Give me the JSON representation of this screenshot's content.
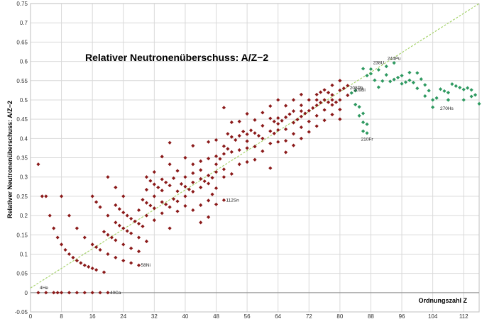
{
  "chart_data": {
    "type": "scatter",
    "title": "Relativer Neutronenüberschuss: A/Z−2",
    "xlabel": "Ordnungszahl   Z",
    "ylabel": "Relativer Neutronenüberschuss:  A/Z−2",
    "xlim": [
      0,
      116
    ],
    "ylim": [
      -0.05,
      0.75
    ],
    "xticks": [
      0,
      8,
      16,
      24,
      32,
      40,
      48,
      56,
      64,
      72,
      80,
      88,
      96,
      104,
      112
    ],
    "yticks": [
      -0.05,
      0,
      0.05,
      0.1,
      0.15,
      0.2,
      0.25,
      0.3,
      0.35,
      0.4,
      0.45,
      0.5,
      0.55,
      0.6,
      0.65,
      0.7,
      0.75
    ],
    "ytick_labels": [
      "-0.05",
      "0",
      "0.05",
      "0.1",
      "0.15",
      "0.2",
      "0.25",
      "0.3",
      "0.35",
      "0.4",
      "0.45",
      "0.5",
      "0.55",
      "0.6",
      "0.65",
      "0.7",
      "0.75"
    ],
    "grid": true,
    "colors": {
      "stable": "#8b1a1a",
      "radioactive": "#2e9960",
      "trend": "#a8d46f",
      "grid": "#d9d9d9"
    },
    "trendline": {
      "x": [
        0,
        116
      ],
      "y": [
        0.012,
        0.75
      ],
      "style": "dashed"
    },
    "series": [
      {
        "color": "#8b1a1a",
        "points": [
          [
            2,
            0
          ],
          [
            2,
            0.333
          ],
          [
            3,
            0.25
          ],
          [
            4,
            0
          ],
          [
            4,
            0.25
          ],
          [
            5,
            0.2
          ],
          [
            6,
            0
          ],
          [
            6,
            0.167
          ],
          [
            7,
            0
          ],
          [
            7,
            0.143
          ],
          [
            8,
            0
          ],
          [
            8,
            0.125
          ],
          [
            8,
            0.25
          ],
          [
            9,
            0.111
          ],
          [
            10,
            0
          ],
          [
            10,
            0.1
          ],
          [
            10,
            0.2
          ],
          [
            11,
            0.091
          ],
          [
            12,
            0
          ],
          [
            12,
            0.083
          ],
          [
            12,
            0.167
          ],
          [
            13,
            0.077
          ],
          [
            14,
            0
          ],
          [
            14,
            0.071
          ],
          [
            14,
            0.143
          ],
          [
            15,
            0.067
          ],
          [
            16,
            0
          ],
          [
            16,
            0.063
          ],
          [
            16,
            0.125
          ],
          [
            16,
            0.25
          ],
          [
            17,
            0.059
          ],
          [
            17,
            0.118
          ],
          [
            17,
            0.235
          ],
          [
            18,
            0
          ],
          [
            18,
            0.111
          ],
          [
            18,
            0.222
          ],
          [
            19,
            0.053
          ],
          [
            19,
            0.158
          ],
          [
            20,
            0
          ],
          [
            20,
            0.1
          ],
          [
            20,
            0.15
          ],
          [
            20,
            0.2
          ],
          [
            20,
            0.3
          ],
          [
            21,
            0.143
          ],
          [
            22,
            0.091
          ],
          [
            22,
            0.136
          ],
          [
            22,
            0.182
          ],
          [
            22,
            0.227
          ],
          [
            22,
            0.273
          ],
          [
            23,
            0.174
          ],
          [
            23,
            0.217
          ],
          [
            24,
            0.083
          ],
          [
            24,
            0.125
          ],
          [
            24,
            0.167
          ],
          [
            24,
            0.208
          ],
          [
            24,
            0.25
          ],
          [
            25,
            0.2
          ],
          [
            25,
            0.16
          ],
          [
            26,
            0.077
          ],
          [
            26,
            0.115
          ],
          [
            26,
            0.154
          ],
          [
            26,
            0.192
          ],
          [
            27,
            0.185
          ],
          [
            28,
            0.071
          ],
          [
            28,
            0.107
          ],
          [
            28,
            0.143
          ],
          [
            28,
            0.179
          ],
          [
            28,
            0.214
          ],
          [
            29,
            0.172
          ],
          [
            29,
            0.241
          ],
          [
            30,
            0.133
          ],
          [
            30,
            0.2
          ],
          [
            30,
            0.233
          ],
          [
            30,
            0.267
          ],
          [
            30,
            0.3
          ],
          [
            31,
            0.226
          ],
          [
            31,
            0.29
          ],
          [
            32,
            0.188
          ],
          [
            32,
            0.219
          ],
          [
            32,
            0.25
          ],
          [
            32,
            0.281
          ],
          [
            32,
            0.313
          ],
          [
            33,
            0.273
          ],
          [
            34,
            0.206
          ],
          [
            34,
            0.235
          ],
          [
            34,
            0.265
          ],
          [
            34,
            0.294
          ],
          [
            34,
            0.353
          ],
          [
            35,
            0.229
          ],
          [
            35,
            0.286
          ],
          [
            36,
            0.167
          ],
          [
            36,
            0.222
          ],
          [
            36,
            0.278
          ],
          [
            36,
            0.333
          ],
          [
            36,
            0.389
          ],
          [
            37,
            0.243
          ],
          [
            37,
            0.297
          ],
          [
            38,
            0.211
          ],
          [
            38,
            0.237
          ],
          [
            38,
            0.263
          ],
          [
            38,
            0.316
          ],
          [
            39,
            0.282
          ],
          [
            40,
            0.225
          ],
          [
            40,
            0.25
          ],
          [
            40,
            0.275
          ],
          [
            40,
            0.3
          ],
          [
            40,
            0.35
          ],
          [
            41,
            0.268
          ],
          [
            42,
            0.214
          ],
          [
            42,
            0.262
          ],
          [
            42,
            0.286
          ],
          [
            42,
            0.31
          ],
          [
            42,
            0.333
          ],
          [
            42,
            0.381
          ],
          [
            44,
            0.182
          ],
          [
            44,
            0.227
          ],
          [
            44,
            0.273
          ],
          [
            44,
            0.295
          ],
          [
            44,
            0.318
          ],
          [
            44,
            0.341
          ],
          [
            45,
            0.289
          ],
          [
            46,
            0.196
          ],
          [
            46,
            0.239
          ],
          [
            46,
            0.283
          ],
          [
            46,
            0.304
          ],
          [
            46,
            0.348
          ],
          [
            46,
            0.391
          ],
          [
            47,
            0.255
          ],
          [
            47,
            0.298
          ],
          [
            48,
            0.229
          ],
          [
            48,
            0.271
          ],
          [
            48,
            0.313
          ],
          [
            48,
            0.333
          ],
          [
            48,
            0.354
          ],
          [
            48,
            0.396
          ],
          [
            49,
            0.347
          ],
          [
            50,
            0.24
          ],
          [
            50,
            0.3
          ],
          [
            50,
            0.32
          ],
          [
            50,
            0.36
          ],
          [
            50,
            0.38
          ],
          [
            50,
            0.48
          ],
          [
            51,
            0.373
          ],
          [
            51,
            0.412
          ],
          [
            52,
            0.308
          ],
          [
            52,
            0.365
          ],
          [
            52,
            0.404
          ],
          [
            52,
            0.442
          ],
          [
            53,
            0.396
          ],
          [
            54,
            0.333
          ],
          [
            54,
            0.37
          ],
          [
            54,
            0.407
          ],
          [
            54,
            0.444
          ],
          [
            55,
            0.418
          ],
          [
            56,
            0.339
          ],
          [
            56,
            0.375
          ],
          [
            56,
            0.393
          ],
          [
            56,
            0.411
          ],
          [
            56,
            0.464
          ],
          [
            57,
            0.421
          ],
          [
            58,
            0.345
          ],
          [
            58,
            0.379
          ],
          [
            58,
            0.414
          ],
          [
            58,
            0.448
          ],
          [
            59,
            0.407
          ],
          [
            60,
            0.367
          ],
          [
            60,
            0.4
          ],
          [
            60,
            0.433
          ],
          [
            60,
            0.467
          ],
          [
            62,
            0.323
          ],
          [
            62,
            0.387
          ],
          [
            62,
            0.419
          ],
          [
            62,
            0.452
          ],
          [
            62,
            0.484
          ],
          [
            63,
            0.413
          ],
          [
            63,
            0.444
          ],
          [
            64,
            0.391
          ],
          [
            64,
            0.422
          ],
          [
            64,
            0.438
          ],
          [
            64,
            0.453
          ],
          [
            64,
            0.5
          ],
          [
            65,
            0.446
          ],
          [
            66,
            0.364
          ],
          [
            66,
            0.394
          ],
          [
            66,
            0.424
          ],
          [
            66,
            0.455
          ],
          [
            66,
            0.485
          ],
          [
            67,
            0.463
          ],
          [
            68,
            0.382
          ],
          [
            68,
            0.412
          ],
          [
            68,
            0.441
          ],
          [
            68,
            0.471
          ],
          [
            68,
            0.5
          ],
          [
            69,
            0.449
          ],
          [
            70,
            0.4
          ],
          [
            70,
            0.429
          ],
          [
            70,
            0.457
          ],
          [
            70,
            0.471
          ],
          [
            70,
            0.486
          ],
          [
            70,
            0.514
          ],
          [
            71,
            0.465
          ],
          [
            72,
            0.417
          ],
          [
            72,
            0.444
          ],
          [
            72,
            0.472
          ],
          [
            72,
            0.5
          ],
          [
            73,
            0.479
          ],
          [
            74,
            0.432
          ],
          [
            74,
            0.459
          ],
          [
            74,
            0.486
          ],
          [
            74,
            0.5
          ],
          [
            74,
            0.514
          ],
          [
            75,
            0.493
          ],
          [
            75,
            0.52
          ],
          [
            76,
            0.447
          ],
          [
            76,
            0.474
          ],
          [
            76,
            0.5
          ],
          [
            76,
            0.526
          ],
          [
            77,
            0.494
          ],
          [
            77,
            0.519
          ],
          [
            78,
            0.462
          ],
          [
            78,
            0.487
          ],
          [
            78,
            0.5
          ],
          [
            78,
            0.513
          ],
          [
            78,
            0.538
          ],
          [
            79,
            0.494
          ],
          [
            80,
            0.45
          ],
          [
            80,
            0.475
          ],
          [
            80,
            0.5
          ],
          [
            80,
            0.525
          ],
          [
            80,
            0.55
          ],
          [
            81,
            0.53
          ],
          [
            82,
            0.512
          ],
          [
            82,
            0.537
          ]
        ]
      },
      {
        "color": "#2e9960",
        "points": [
          [
            83,
            0.518
          ],
          [
            84,
            0.488
          ],
          [
            84,
            0.524
          ],
          [
            85,
            0.459
          ],
          [
            85,
            0.482
          ],
          [
            86,
            0.419
          ],
          [
            86,
            0.442
          ],
          [
            86,
            0.465
          ],
          [
            86,
            0.581
          ],
          [
            87,
            0.414
          ],
          [
            87,
            0.437
          ],
          [
            87,
            0.563
          ],
          [
            88,
            0.568
          ],
          [
            88,
            0.58
          ],
          [
            89,
            0.551
          ],
          [
            90,
            0.533
          ],
          [
            90,
            0.578
          ],
          [
            91,
            0.549
          ],
          [
            92,
            0.587
          ],
          [
            92,
            0.565
          ],
          [
            93,
            0.548
          ],
          [
            94,
            0.596
          ],
          [
            94,
            0.553
          ],
          [
            95,
            0.558
          ],
          [
            96,
            0.542
          ],
          [
            96,
            0.563
          ],
          [
            97,
            0.546
          ],
          [
            98,
            0.551
          ],
          [
            98,
            0.571
          ],
          [
            99,
            0.545
          ],
          [
            100,
            0.53
          ],
          [
            100,
            0.57
          ],
          [
            101,
            0.554
          ],
          [
            102,
            0.51
          ],
          [
            102,
            0.539
          ],
          [
            103,
            0.524
          ],
          [
            104,
            0.481
          ],
          [
            104,
            0.5
          ],
          [
            105,
            0.505
          ],
          [
            106,
            0.528
          ],
          [
            107,
            0.523
          ],
          [
            108,
            0.5
          ],
          [
            108,
            0.519
          ],
          [
            108,
            0.5
          ],
          [
            109,
            0.541
          ],
          [
            110,
            0.536
          ],
          [
            111,
            0.532
          ],
          [
            112,
            0.5
          ],
          [
            112,
            0.527
          ],
          [
            113,
            0.531
          ],
          [
            114,
            0.509
          ],
          [
            114,
            0.526
          ],
          [
            115,
            0.513
          ],
          [
            116,
            0.49
          ]
        ]
      }
    ],
    "annotations": [
      {
        "text": "4He",
        "x": 2,
        "y": 0
      },
      {
        "text": "40Ca",
        "x": 20,
        "y": 0
      },
      {
        "text": "58Ni",
        "x": 28,
        "y": 0.071
      },
      {
        "text": "112Sn",
        "x": 50,
        "y": 0.24
      },
      {
        "text": "209Bi",
        "x": 83,
        "y": 0.518
      },
      {
        "text": "208Pb",
        "x": 82,
        "y": 0.537
      },
      {
        "text": "210Fr",
        "x": 87,
        "y": 0.414
      },
      {
        "text": "238U",
        "x": 92,
        "y": 0.587
      },
      {
        "text": "244Pu",
        "x": 94,
        "y": 0.596
      },
      {
        "text": "270Hs",
        "x": 108,
        "y": 0.5
      }
    ]
  }
}
